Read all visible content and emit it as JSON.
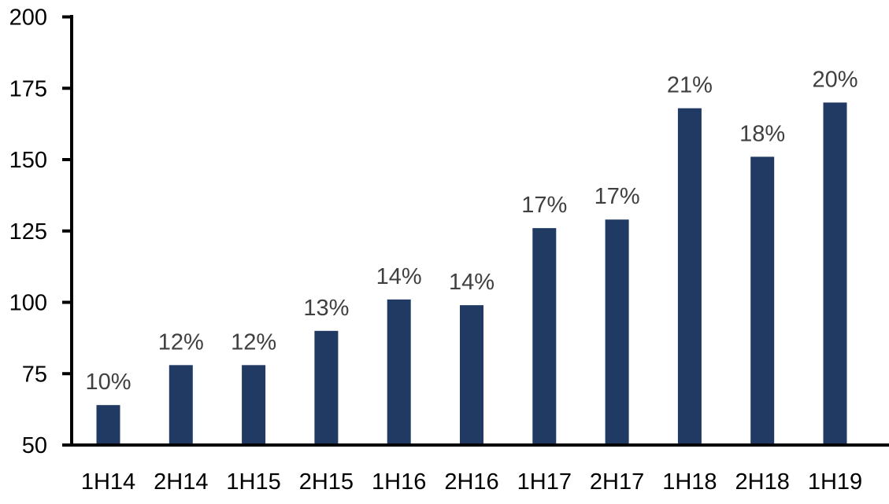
{
  "chart_data": {
    "type": "bar",
    "title": "",
    "xlabel": "",
    "ylabel": "",
    "categories": [
      "1H14",
      "2H14",
      "1H15",
      "2H15",
      "1H16",
      "2H16",
      "1H17",
      "2H17",
      "1H18",
      "2H18",
      "1H19"
    ],
    "values": [
      64,
      78,
      78,
      90,
      101,
      99,
      126,
      129,
      168,
      151,
      170
    ],
    "bar_labels": [
      "10%",
      "12%",
      "12%",
      "13%",
      "14%",
      "14%",
      "17%",
      "17%",
      "21%",
      "18%",
      "20%"
    ],
    "ylim": [
      50,
      200
    ],
    "yticks": [
      {
        "value": 50,
        "label": "50"
      },
      {
        "value": 75,
        "label": "75"
      },
      {
        "value": 100,
        "label": "100"
      },
      {
        "value": 125,
        "label": "125"
      },
      {
        "value": 150,
        "label": "150"
      },
      {
        "value": 175,
        "label": "175"
      },
      {
        "value": 200,
        "label": "200"
      }
    ],
    "grid": false,
    "legend": false,
    "colors": {
      "bar": "#203A64",
      "data_label": "#404040",
      "axis": "#000000",
      "background": "#ffffff"
    }
  }
}
